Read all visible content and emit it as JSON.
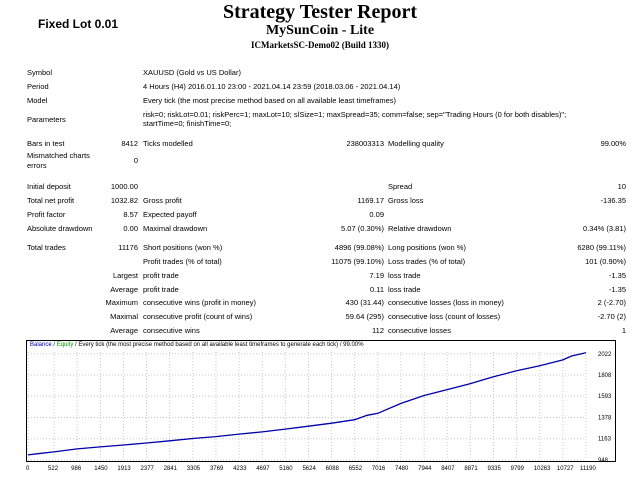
{
  "overlay_label": "Fixed Lot 0.01",
  "report": {
    "title": "Strategy Tester Report",
    "ea_name": "MySunCoin - Lite",
    "server": "ICMarketsSC-Demo02 (Build 1330)"
  },
  "info": {
    "symbol_label": "Symbol",
    "symbol_value": "XAUUSD (Gold vs US Dollar)",
    "period_label": "Period",
    "period_value": "4 Hours (H4) 2016.01.10 23:00 - 2021.04.14 23:59 (2018.03.06 - 2021.04.14)",
    "model_label": "Model",
    "model_value": "Every tick (the most precise method based on all available least timeframes)",
    "parameters_label": "Parameters",
    "parameters_line1": "risk=0; riskLot=0.01; riskPerc=1; maxLot=10; slSize=1; maxSpread=35; comm=false; sep=\"Trading Hours (0 for both disables)\";",
    "parameters_line2": "startTime=0; finishTime=0;"
  },
  "stats": {
    "bars_label": "Bars in test",
    "bars_value": "8412",
    "ticks_label": "Ticks modelled",
    "ticks_value": "238003313",
    "quality_label": "Modelling quality",
    "quality_value": "99.00%",
    "mismatch_label_1": "Mismatched charts",
    "mismatch_label_2": "errors",
    "mismatch_value": "0",
    "deposit_label": "Initial deposit",
    "deposit_value": "1000.00",
    "spread_label": "Spread",
    "spread_value": "10",
    "net_label": "Total net profit",
    "net_value": "1032.82",
    "gross_profit_label": "Gross profit",
    "gross_profit_value": "1169.17",
    "gross_loss_label": "Gross loss",
    "gross_loss_value": "-136.35",
    "pf_label": "Profit factor",
    "pf_value": "8.57",
    "payoff_label": "Expected payoff",
    "payoff_value": "0.09",
    "abs_dd_label": "Absolute drawdown",
    "abs_dd_value": "0.00",
    "max_dd_label": "Maximal drawdown",
    "max_dd_value": "5.07 (0.30%)",
    "rel_dd_label": "Relative drawdown",
    "rel_dd_value": "0.34% (3.81)",
    "trades_label": "Total trades",
    "trades_value": "11176",
    "short_label": "Short positions (won %)",
    "short_value": "4896 (99.08%)",
    "long_label": "Long positions (won %)",
    "long_value": "6280 (99.11%)",
    "profit_trades_label": "Profit trades (% of total)",
    "profit_trades_value": "11075 (99.10%)",
    "loss_trades_label": "Loss trades (% of total)",
    "loss_trades_value": "101 (0.90%)",
    "largest_label": "Largest",
    "largest_profit_label": "profit trade",
    "largest_profit_value": "7.19",
    "largest_loss_label": "loss trade",
    "largest_loss_value": "-1.35",
    "average_label": "Average",
    "average_profit_label": "profit trade",
    "average_profit_value": "0.11",
    "average_loss_label": "loss trade",
    "average_loss_value": "-1.35",
    "maximum_label": "Maximum",
    "max_wins_label": "consecutive wins (profit in money)",
    "max_wins_value": "430 (31.44)",
    "max_losses_label": "consecutive losses (loss in money)",
    "max_losses_value": "2 (-2.70)",
    "maximal_label": "Maximal",
    "maximal_profit_label": "consecutive profit (count of wins)",
    "maximal_profit_value": "59.64 (295)",
    "maximal_loss_label": "consecutive loss (count of losses)",
    "maximal_loss_value": "-2.70 (2)",
    "avg_consec_label": "Average",
    "avg_wins_label": "consecutive wins",
    "avg_wins_value": "112",
    "avg_losses_label": "consecutive losses",
    "avg_losses_value": "1"
  },
  "chart_header": {
    "balance": "Balance",
    "sep1": " / ",
    "equity": "Equity",
    "rest": " / Every tick (the most precise method based on all available least timeframes to generate each tick) / 99.00%"
  },
  "colors": {
    "balance": "#0000aa",
    "equity": "#00a000",
    "grid": "#c8c8c8"
  },
  "chart_data": {
    "type": "line",
    "x_ticks": [
      "0",
      "522",
      "986",
      "1450",
      "1913",
      "2377",
      "2841",
      "3305",
      "3769",
      "4233",
      "4697",
      "5160",
      "5624",
      "6088",
      "6552",
      "7016",
      "7480",
      "7944",
      "8407",
      "8871",
      "9335",
      "9799",
      "10263",
      "10727",
      "11190"
    ],
    "y_ticks": [
      "948",
      "1163",
      "1378",
      "1593",
      "1808",
      "2022"
    ],
    "xlim": [
      0,
      11190
    ],
    "ylim": [
      948,
      2040
    ],
    "series": [
      {
        "name": "Balance",
        "x": [
          0,
          200,
          522,
          986,
          1450,
          1913,
          2377,
          2841,
          3305,
          3769,
          4233,
          4697,
          5160,
          5624,
          6088,
          6552,
          6800,
          7016,
          7480,
          7944,
          8407,
          8871,
          9335,
          9799,
          10263,
          10727,
          10900,
          11190
        ],
        "y": [
          1000,
          1012,
          1030,
          1060,
          1080,
          1100,
          1120,
          1142,
          1165,
          1185,
          1210,
          1232,
          1260,
          1290,
          1320,
          1355,
          1400,
          1420,
          1520,
          1600,
          1660,
          1720,
          1790,
          1850,
          1900,
          1960,
          2000,
          2032
        ]
      }
    ]
  }
}
